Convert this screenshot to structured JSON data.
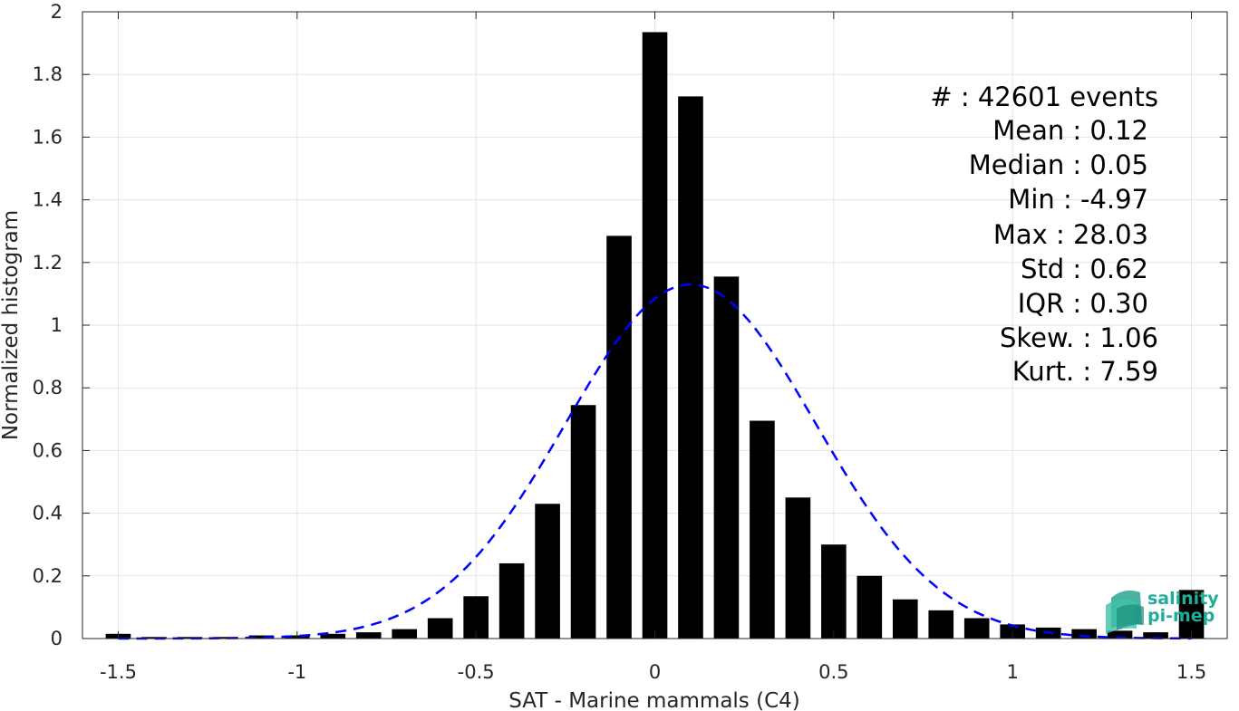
{
  "chart_data": {
    "type": "bar",
    "xlabel": "SAT - Marine mammals (C4)",
    "ylabel": "Normalized histogram",
    "xlim": [
      -1.6,
      1.6
    ],
    "ylim": [
      0,
      2
    ],
    "xticks": [
      -1.5,
      -1,
      -0.5,
      0,
      0.5,
      1,
      1.5
    ],
    "xtick_labels": [
      "-1.5",
      "-1",
      "-0.5",
      "0",
      "0.5",
      "1",
      "1.5"
    ],
    "yticks": [
      0,
      0.2,
      0.4,
      0.6,
      0.8,
      1,
      1.2,
      1.4,
      1.6,
      1.8,
      2
    ],
    "ytick_labels": [
      "0",
      "0.2",
      "0.4",
      "0.6",
      "0.8",
      "1",
      "1.2",
      "1.4",
      "1.6",
      "1.8",
      "2"
    ],
    "grid": true,
    "bar_color": "#000000",
    "bin_width": 0.1,
    "bins": [
      -1.5,
      -1.4,
      -1.3,
      -1.2,
      -1.1,
      -1.0,
      -0.9,
      -0.8,
      -0.7,
      -0.6,
      -0.5,
      -0.4,
      -0.3,
      -0.2,
      -0.1,
      0.0,
      0.1,
      0.2,
      0.3,
      0.4,
      0.5,
      0.6,
      0.7,
      0.8,
      0.9,
      1.0,
      1.1,
      1.2,
      1.3,
      1.4,
      1.5
    ],
    "values": [
      0.015,
      0.005,
      0.005,
      0.005,
      0.01,
      0.01,
      0.015,
      0.02,
      0.03,
      0.065,
      0.135,
      0.24,
      0.43,
      0.745,
      1.285,
      1.935,
      1.73,
      1.155,
      0.695,
      0.45,
      0.3,
      0.2,
      0.125,
      0.09,
      0.065,
      0.045,
      0.035,
      0.03,
      0.025,
      0.02,
      0.155
    ],
    "fit": {
      "style": "dashed",
      "color": "#0000ff",
      "mean": 0.1,
      "std": 0.35,
      "peak": 1.13
    },
    "stats": [
      "#  : 42601 events",
      "Mean : 0.12",
      "Median : 0.05",
      "Min : -4.97",
      "Max : 28.03",
      "Std : 0.62",
      "IQR : 0.30",
      "Skew. : 1.06",
      "Kurt. : 7.59"
    ]
  },
  "logo": {
    "line1": "salinity",
    "line2": "pi-mep",
    "color": "#1fae9a"
  }
}
